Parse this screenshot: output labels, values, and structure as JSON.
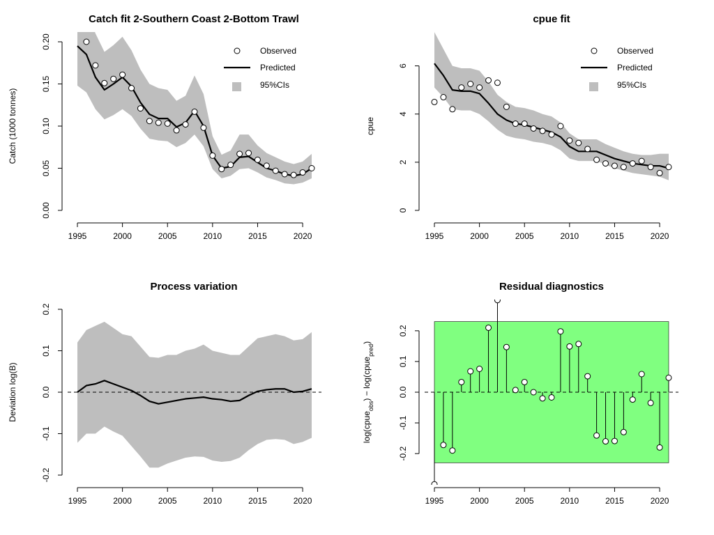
{
  "chart_data": [
    {
      "id": "catch",
      "type": "line",
      "title": "Catch fit 2-Southern Coast 2-Bottom Trawl",
      "xlabel": "",
      "ylabel": "Catch (1000 tonnes)",
      "xlim": [
        1995,
        2021
      ],
      "ylim": [
        0,
        0.2
      ],
      "xticks": [
        1995,
        2000,
        2005,
        2010,
        2015,
        2020
      ],
      "yticks": [
        0.0,
        0.05,
        0.1,
        0.15,
        0.2
      ],
      "ytick_labels": [
        "0.00",
        "0.05",
        "0.10",
        "0.15",
        "0.20"
      ],
      "x": [
        1996,
        1997,
        1998,
        1999,
        2000,
        2001,
        2002,
        2003,
        2004,
        2005,
        2006,
        2007,
        2008,
        2009,
        2010,
        2011,
        2012,
        2013,
        2014,
        2015,
        2016,
        2017,
        2018,
        2019,
        2020,
        2021
      ],
      "observed": [
        0.2,
        0.172,
        0.151,
        0.156,
        0.161,
        0.145,
        0.121,
        0.106,
        0.104,
        0.103,
        0.095,
        0.102,
        0.117,
        0.098,
        0.065,
        0.049,
        0.054,
        0.067,
        0.068,
        0.06,
        0.053,
        0.047,
        0.043,
        0.042,
        0.045,
        0.05
      ],
      "predicted_x": [
        1995,
        1996,
        1997,
        1998,
        1999,
        2000,
        2001,
        2002,
        2003,
        2004,
        2005,
        2006,
        2007,
        2008,
        2009,
        2010,
        2011,
        2012,
        2013,
        2014,
        2015,
        2016,
        2017,
        2018,
        2019,
        2020,
        2021
      ],
      "predicted": [
        0.195,
        0.185,
        0.158,
        0.143,
        0.15,
        0.158,
        0.147,
        0.128,
        0.114,
        0.109,
        0.109,
        0.099,
        0.104,
        0.118,
        0.1,
        0.065,
        0.05,
        0.052,
        0.063,
        0.064,
        0.057,
        0.05,
        0.047,
        0.043,
        0.041,
        0.043,
        0.05
      ],
      "ci_lower": [
        0.148,
        0.14,
        0.12,
        0.108,
        0.113,
        0.12,
        0.112,
        0.097,
        0.085,
        0.083,
        0.082,
        0.075,
        0.08,
        0.09,
        0.076,
        0.049,
        0.038,
        0.041,
        0.049,
        0.05,
        0.045,
        0.039,
        0.036,
        0.032,
        0.031,
        0.033,
        0.038
      ],
      "ci_upper": [
        0.25,
        0.24,
        0.21,
        0.188,
        0.196,
        0.206,
        0.19,
        0.167,
        0.15,
        0.145,
        0.143,
        0.13,
        0.136,
        0.16,
        0.138,
        0.088,
        0.066,
        0.071,
        0.09,
        0.09,
        0.077,
        0.068,
        0.063,
        0.058,
        0.055,
        0.058,
        0.067
      ],
      "legend": {
        "position": "top-right",
        "observed": "Observed",
        "predicted": "Predicted",
        "ci": "95%CIs"
      }
    },
    {
      "id": "cpue",
      "type": "line",
      "title": "cpue fit",
      "xlabel": "",
      "ylabel": "cpue",
      "xlim": [
        1995,
        2021
      ],
      "ylim": [
        0,
        7
      ],
      "xticks": [
        1995,
        2000,
        2005,
        2010,
        2015,
        2020
      ],
      "yticks": [
        0,
        2,
        4,
        6
      ],
      "ytick_labels": [
        "0",
        "2",
        "4",
        "6"
      ],
      "x": [
        1995,
        1996,
        1997,
        1998,
        1999,
        2000,
        2001,
        2002,
        2003,
        2004,
        2005,
        2006,
        2007,
        2008,
        2009,
        2010,
        2011,
        2012,
        2013,
        2014,
        2015,
        2016,
        2017,
        2018,
        2019,
        2020,
        2021
      ],
      "observed": [
        4.5,
        4.7,
        4.2,
        5.1,
        5.25,
        5.1,
        5.4,
        5.3,
        4.3,
        3.6,
        3.6,
        3.4,
        3.3,
        3.15,
        3.5,
        2.9,
        2.8,
        2.55,
        2.1,
        1.95,
        1.85,
        1.8,
        1.95,
        2.05,
        1.8,
        1.55,
        1.8
      ],
      "predicted_x": [
        1995,
        1996,
        1997,
        1998,
        1999,
        2000,
        2001,
        2002,
        2003,
        2004,
        2005,
        2006,
        2007,
        2008,
        2009,
        2010,
        2011,
        2012,
        2013,
        2014,
        2015,
        2016,
        2017,
        2018,
        2019,
        2020,
        2021
      ],
      "predicted": [
        6.1,
        5.6,
        5.0,
        4.95,
        4.95,
        4.85,
        4.45,
        4.0,
        3.75,
        3.6,
        3.55,
        3.45,
        3.35,
        3.25,
        3.05,
        2.65,
        2.45,
        2.45,
        2.45,
        2.3,
        2.15,
        2.05,
        1.95,
        1.9,
        1.85,
        1.85,
        1.75
      ],
      "ci_lower": [
        5.1,
        4.7,
        4.2,
        4.15,
        4.15,
        4.0,
        3.7,
        3.35,
        3.1,
        3.0,
        2.95,
        2.85,
        2.8,
        2.7,
        2.5,
        2.15,
        2.05,
        2.05,
        2.05,
        1.9,
        1.75,
        1.65,
        1.55,
        1.5,
        1.45,
        1.4,
        1.25
      ],
      "ci_upper": [
        7.4,
        6.7,
        6.0,
        5.9,
        5.9,
        5.8,
        5.35,
        4.8,
        4.5,
        4.3,
        4.25,
        4.15,
        4.0,
        3.9,
        3.65,
        3.2,
        2.95,
        2.95,
        2.95,
        2.75,
        2.6,
        2.45,
        2.35,
        2.3,
        2.3,
        2.35,
        2.35
      ],
      "legend": {
        "position": "top-right",
        "observed": "Observed",
        "predicted": "Predicted",
        "ci": "95%CIs"
      }
    },
    {
      "id": "process",
      "type": "line",
      "title": "Process variation",
      "xlabel": "",
      "ylabel": "Deviation log(B)",
      "xlim": [
        1995,
        2021
      ],
      "ylim": [
        -0.2,
        0.2
      ],
      "xticks": [
        1995,
        2000,
        2005,
        2010,
        2015,
        2020
      ],
      "yticks": [
        -0.2,
        -0.1,
        0.0,
        0.1,
        0.2
      ],
      "ytick_labels": [
        "-0.2",
        "-0.1",
        "0.0",
        "0.1",
        "0.2"
      ],
      "reference_line": 0,
      "x": [
        1995,
        1996,
        1997,
        1998,
        1999,
        2000,
        2001,
        2002,
        2003,
        2004,
        2005,
        2006,
        2007,
        2008,
        2009,
        2010,
        2011,
        2012,
        2013,
        2014,
        2015,
        2016,
        2017,
        2018,
        2019,
        2020,
        2021
      ],
      "deviation": [
        0.0,
        0.016,
        0.02,
        0.028,
        0.02,
        0.012,
        0.004,
        -0.008,
        -0.022,
        -0.028,
        -0.024,
        -0.02,
        -0.016,
        -0.014,
        -0.012,
        -0.016,
        -0.018,
        -0.022,
        -0.02,
        -0.008,
        0.002,
        0.006,
        0.008,
        0.008,
        0.0,
        0.002,
        0.008
      ],
      "ci_lower": [
        -0.122,
        -0.1,
        -0.1,
        -0.083,
        -0.095,
        -0.105,
        -0.13,
        -0.155,
        -0.182,
        -0.182,
        -0.172,
        -0.165,
        -0.158,
        -0.155,
        -0.156,
        -0.165,
        -0.168,
        -0.166,
        -0.158,
        -0.14,
        -0.125,
        -0.115,
        -0.113,
        -0.115,
        -0.125,
        -0.12,
        -0.11
      ],
      "ci_upper": [
        0.12,
        0.15,
        0.16,
        0.17,
        0.155,
        0.14,
        0.135,
        0.11,
        0.085,
        0.083,
        0.09,
        0.09,
        0.1,
        0.105,
        0.115,
        0.1,
        0.095,
        0.09,
        0.09,
        0.11,
        0.13,
        0.135,
        0.14,
        0.135,
        0.125,
        0.128,
        0.145
      ]
    },
    {
      "id": "residual",
      "type": "scatter",
      "title": "Residual diagnostics",
      "xlabel": "",
      "ylabel": "log(cpue_obs) − log(cpue_pred)",
      "xlim": [
        1995,
        2021
      ],
      "ylim": [
        -0.27,
        0.27
      ],
      "xticks": [
        1995,
        2000,
        2005,
        2010,
        2015,
        2020
      ],
      "yticks": [
        -0.2,
        -0.1,
        0.0,
        0.1,
        0.2
      ],
      "ytick_labels": [
        "-0.2",
        "-0.1",
        "0.0",
        "0.1",
        "0.2"
      ],
      "band": [
        -0.23,
        0.23
      ],
      "band_color": "#80ff80",
      "reference_line": 0,
      "x": [
        1995,
        1996,
        1997,
        1998,
        1999,
        2000,
        2001,
        2002,
        2003,
        2004,
        2005,
        2006,
        2007,
        2008,
        2009,
        2010,
        2011,
        2012,
        2013,
        2014,
        2015,
        2016,
        2017,
        2018,
        2019,
        2020,
        2021
      ],
      "residuals": [
        -0.3,
        -0.172,
        -0.19,
        0.033,
        0.068,
        0.076,
        0.21,
        0.3,
        0.147,
        0.007,
        0.033,
        0.0,
        -0.02,
        -0.017,
        0.198,
        0.149,
        0.157,
        0.052,
        -0.141,
        -0.16,
        -0.159,
        -0.13,
        -0.024,
        0.059,
        -0.035,
        -0.18,
        0.047
      ]
    }
  ],
  "colors": {
    "ci_fill": "#bebebe",
    "line": "#000000",
    "point_fill": "#ffffff",
    "band": "#80ff80"
  }
}
